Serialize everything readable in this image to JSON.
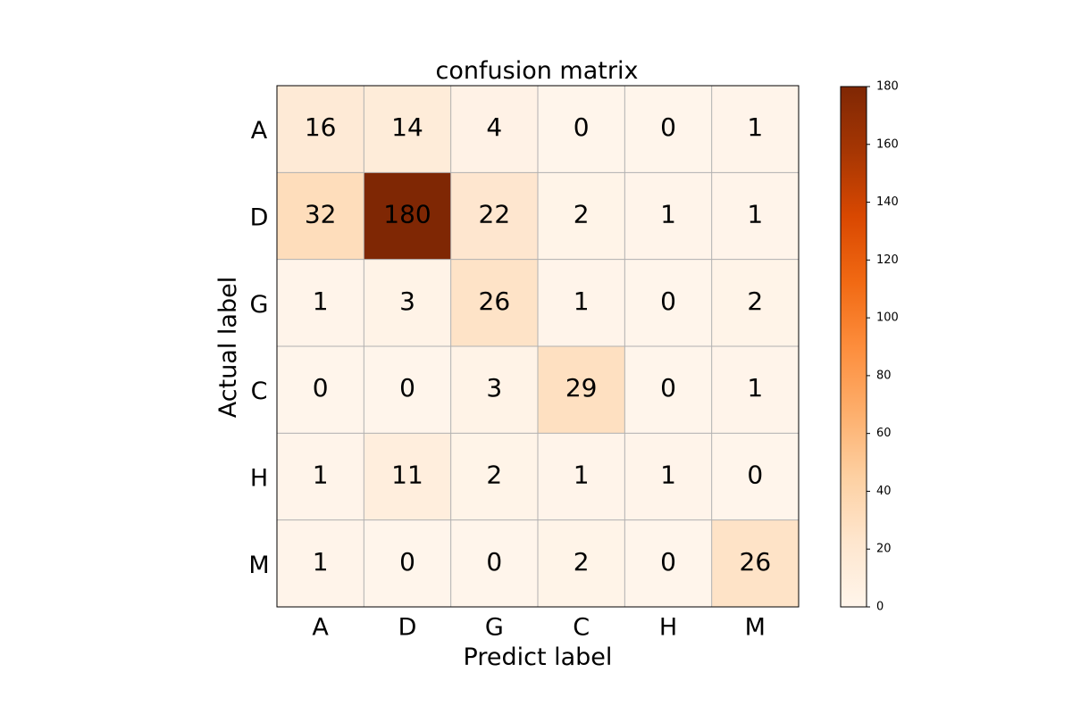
{
  "chart_data": {
    "type": "heatmap",
    "title": "confusion matrix",
    "xlabel": "Predict label",
    "ylabel": "Actual label",
    "x_categories": [
      "A",
      "D",
      "G",
      "C",
      "H",
      "M"
    ],
    "y_categories": [
      "A",
      "D",
      "G",
      "C",
      "H",
      "M"
    ],
    "values": [
      [
        16,
        14,
        4,
        0,
        0,
        1
      ],
      [
        32,
        180,
        22,
        2,
        1,
        1
      ],
      [
        1,
        3,
        26,
        1,
        0,
        2
      ],
      [
        0,
        0,
        3,
        29,
        0,
        1
      ],
      [
        1,
        11,
        2,
        1,
        1,
        0
      ],
      [
        1,
        0,
        0,
        2,
        0,
        26
      ]
    ],
    "colorbar": {
      "min": 0,
      "max": 180,
      "ticks": [
        0,
        20,
        40,
        60,
        80,
        100,
        120,
        140,
        160,
        180
      ]
    },
    "colormap": "Oranges",
    "grid": true
  }
}
